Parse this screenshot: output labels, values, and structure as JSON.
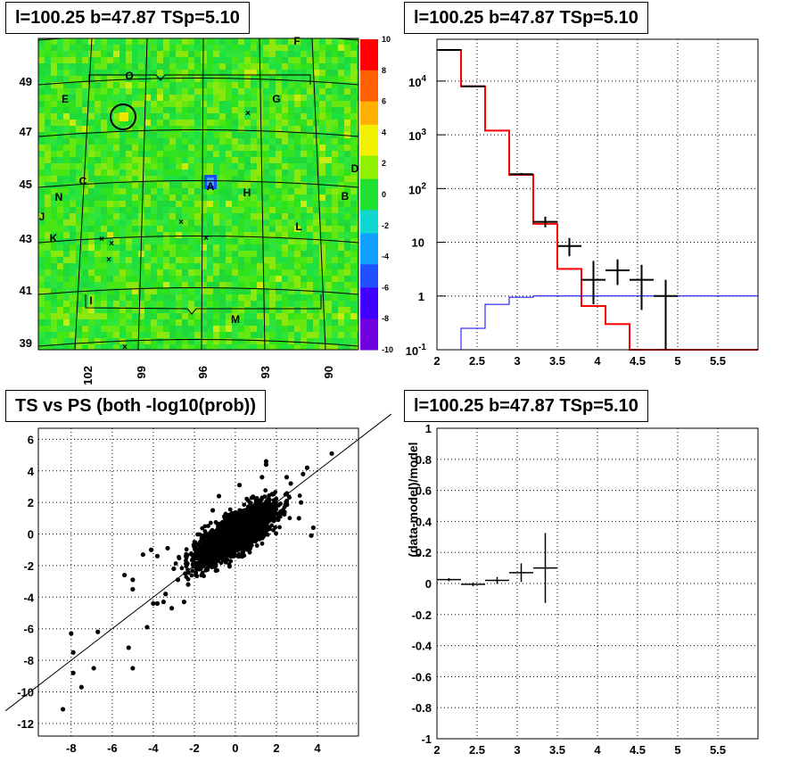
{
  "panels": {
    "map_title": "l=100.25 b=47.87 TSp=5.10",
    "spectrum_title": "l=100.25 b=47.87 TSp=5.10",
    "scatter_title": "TS vs PS (both -log10(prob))",
    "residual_title": "l=100.25 b=47.87 TSp=5.10"
  },
  "chart_data": [
    {
      "type": "heatmap",
      "title": "l=100.25 b=47.87 TSp=5.10",
      "x_ticks": [
        "102",
        "99",
        "96",
        "93",
        "90"
      ],
      "y_ticks": [
        "39",
        "41",
        "43",
        "45",
        "47",
        "49"
      ],
      "colorbar_ticks": [
        "10",
        "8",
        "6",
        "4",
        "2",
        "0",
        "-2",
        "-4",
        "-6",
        "-8",
        "-10"
      ],
      "zlim": [
        -10,
        10
      ],
      "region_labels": [
        "F",
        "O",
        "E",
        "G",
        "D",
        "C",
        "A",
        "H",
        "B",
        "N",
        "J",
        "L",
        "K",
        "I",
        "M"
      ],
      "colors": {
        "background": "#28e41c",
        "hot": "#f0e600",
        "cold": "#1a4cff"
      }
    },
    {
      "type": "line",
      "title": "l=100.25 b=47.87 TSp=5.10",
      "log_y": true,
      "xlim": [
        2,
        6
      ],
      "ylim": [
        0.1,
        60000
      ],
      "x_ticks": [
        "2",
        "2.5",
        "3",
        "3.5",
        "4",
        "4.5",
        "5",
        "5.5"
      ],
      "y_ticks": [
        "10^-1",
        "1",
        "10",
        "10^2",
        "10^3",
        "10^4"
      ],
      "bin_edges": [
        2.0,
        2.3,
        2.6,
        2.9,
        3.2,
        3.5,
        3.8,
        4.1,
        4.4,
        6.0
      ],
      "series": [
        {
          "color": "#ff0000",
          "values": [
            38000,
            8000,
            1200,
            180,
            22,
            3.2,
            0.65,
            0.3,
            0.1
          ]
        },
        {
          "color": "#0000ff",
          "bin_edges": [
            2.3,
            2.6,
            2.9,
            3.2,
            6.0
          ],
          "values": [
            0.25,
            0.7,
            0.95,
            1.0
          ]
        }
      ],
      "data_points": [
        {
          "x": 2.15,
          "y": 38000,
          "xerr": 0.15,
          "ylo": 38000,
          "yhi": 38000
        },
        {
          "x": 2.45,
          "y": 8000,
          "xerr": 0.15,
          "ylo": 8000,
          "yhi": 8000
        },
        {
          "x": 3.05,
          "y": 185,
          "xerr": 0.15,
          "ylo": 175,
          "yhi": 195
        },
        {
          "x": 3.35,
          "y": 24,
          "xerr": 0.15,
          "ylo": 19,
          "yhi": 30
        },
        {
          "x": 3.65,
          "y": 8.5,
          "xerr": 0.15,
          "ylo": 5.5,
          "yhi": 12
        },
        {
          "x": 3.95,
          "y": 2.0,
          "xerr": 0.15,
          "ylo": 0.7,
          "yhi": 4.5
        },
        {
          "x": 4.25,
          "y": 3.0,
          "xerr": 0.15,
          "ylo": 1.6,
          "yhi": 4.8
        },
        {
          "x": 4.55,
          "y": 2.0,
          "xerr": 0.15,
          "ylo": 0.55,
          "yhi": 3.8
        },
        {
          "x": 4.85,
          "y": 1.0,
          "xerr": 0.15,
          "ylo": 0.1,
          "yhi": 2.0
        }
      ]
    },
    {
      "type": "scatter",
      "title": "TS vs PS (both -log10(prob))",
      "xlim": [
        -9.6,
        6.0
      ],
      "ylim": [
        -12.8,
        6.7
      ],
      "x_ticks": [
        "-8",
        "-6",
        "-4",
        "-2",
        "0",
        "2",
        "4"
      ],
      "y_ticks": [
        "-12",
        "-10",
        "-8",
        "-6",
        "-4",
        "-2",
        "0",
        "2",
        "4",
        "6"
      ],
      "diagonal": {
        "from": [
          -11.2,
          -11.2
        ],
        "to": [
          7.6,
          7.6
        ]
      },
      "outliers": [
        [
          -8.4,
          -11.1
        ],
        [
          -7.5,
          -9.7
        ],
        [
          -7.9,
          -8.8
        ],
        [
          -8.0,
          -6.3
        ],
        [
          -7.9,
          -7.5
        ],
        [
          -6.9,
          -8.5
        ],
        [
          -6.7,
          -6.2
        ],
        [
          -5.0,
          -8.5
        ],
        [
          -5.2,
          -7.2
        ],
        [
          -5.4,
          -2.6
        ],
        [
          -4.3,
          -5.9
        ],
        [
          -5.0,
          -3.5
        ],
        [
          -5.0,
          -2.9
        ],
        [
          -3.1,
          -4.7
        ],
        [
          -3.5,
          -4.3
        ],
        [
          -4.0,
          -4.4
        ],
        [
          -3.8,
          -4.4
        ],
        [
          -3.4,
          -3.8
        ],
        [
          -2.5,
          -4.3
        ],
        [
          -2.8,
          -2.9
        ],
        [
          -2.3,
          -3.2
        ],
        [
          -3.0,
          -2.2
        ],
        [
          -4.1,
          -1.0
        ],
        [
          -4.5,
          -1.3
        ],
        [
          -3.8,
          -1.4
        ],
        [
          -3.3,
          -0.9
        ],
        [
          4.7,
          5.1
        ],
        [
          3.5,
          4.2
        ],
        [
          3.3,
          3.8
        ],
        [
          1.5,
          4.6
        ],
        [
          1.5,
          4.4
        ],
        [
          2.5,
          3.6
        ],
        [
          3.2,
          2.0
        ],
        [
          3.7,
          -0.1
        ],
        [
          3.1,
          1.0
        ],
        [
          1.3,
          3.6
        ],
        [
          0.2,
          3.1
        ],
        [
          -0.8,
          2.4
        ],
        [
          -1.1,
          1.5
        ],
        [
          2.7,
          3.2
        ],
        [
          3.8,
          0.4
        ]
      ],
      "cloud": {
        "center": [
          0,
          0
        ],
        "spread": [
          1.0,
          1.0
        ],
        "correlation": 0.75,
        "count": 2600
      }
    },
    {
      "type": "line",
      "title": "l=100.25 b=47.87 TSp=5.10",
      "ylabel": "(data-model)/model",
      "xlim": [
        2,
        6
      ],
      "ylim": [
        -1,
        1
      ],
      "x_ticks": [
        "2",
        "2.5",
        "3",
        "3.5",
        "4",
        "4.5",
        "5",
        "5.5"
      ],
      "y_ticks": [
        "-1",
        "-0.8",
        "-0.6",
        "-0.4",
        "-0.2",
        "0",
        "0.2",
        "0.4",
        "0.6",
        "0.8",
        "1"
      ],
      "data_points": [
        {
          "x": 2.15,
          "y": 0.025,
          "xerr": 0.15,
          "yerr": 0.01
        },
        {
          "x": 2.45,
          "y": -0.005,
          "xerr": 0.15,
          "yerr": 0.012
        },
        {
          "x": 2.75,
          "y": 0.02,
          "xerr": 0.15,
          "yerr": 0.022
        },
        {
          "x": 3.05,
          "y": 0.07,
          "xerr": 0.15,
          "yerr": 0.06
        },
        {
          "x": 3.35,
          "y": 0.1,
          "xerr": 0.15,
          "yerr": 0.225
        }
      ]
    }
  ]
}
